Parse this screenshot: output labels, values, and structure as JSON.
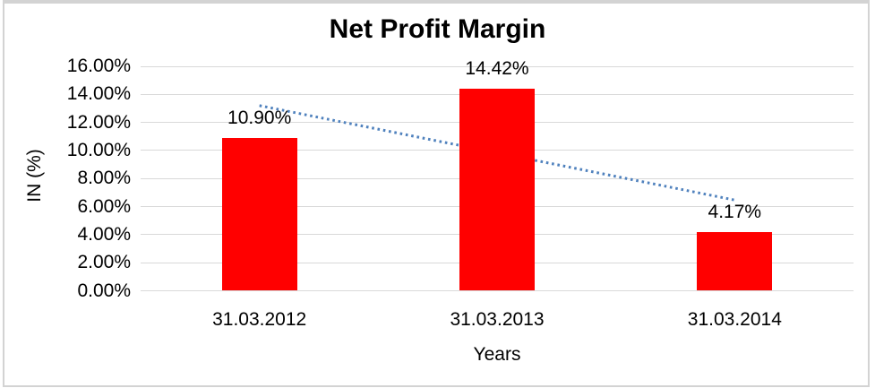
{
  "chart_data": {
    "type": "bar",
    "title": "Net Profit Margin",
    "xlabel": "Years",
    "ylabel": "IN (%)",
    "categories": [
      "31.03.2012",
      "31.03.2013",
      "31.03.2014"
    ],
    "values": [
      10.9,
      14.42,
      4.17
    ],
    "data_labels": [
      "10.90%",
      "14.42%",
      "4.17%"
    ],
    "tick_values": [
      0,
      2,
      4,
      6,
      8,
      10,
      12,
      14,
      16
    ],
    "tick_labels": [
      "0.00%",
      "2.00%",
      "4.00%",
      "6.00%",
      "8.00%",
      "10.00%",
      "12.00%",
      "14.00%",
      "16.00%"
    ],
    "ylim": [
      0,
      16
    ],
    "grid": true,
    "legend": "none",
    "bar_color": "#ff0000",
    "gridline_color": "#d9d9d9",
    "trendline": {
      "type": "linear",
      "style": "dotted",
      "color": "#4f81bd",
      "start_value": 13.2,
      "end_value": 6.47
    }
  }
}
